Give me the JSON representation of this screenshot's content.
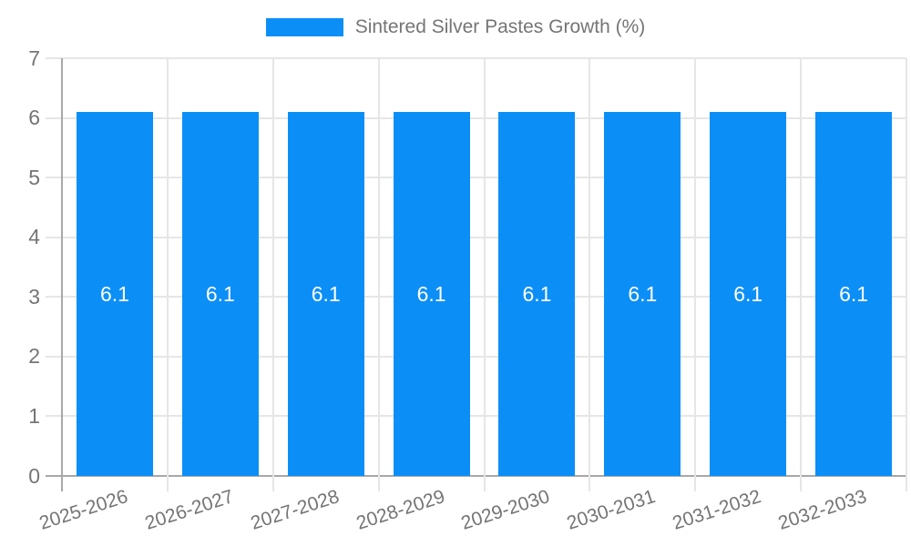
{
  "chart_data": {
    "type": "bar",
    "title": "",
    "xlabel": "",
    "ylabel": "",
    "legend": {
      "label": "Sintered Silver Pastes Growth (%)",
      "position": "top"
    },
    "categories": [
      "2025-2026",
      "2026-2027",
      "2027-2028",
      "2028-2029",
      "2029-2030",
      "2030-2031",
      "2031-2032",
      "2032-2033"
    ],
    "series": [
      {
        "name": "Sintered Silver Pastes Growth (%)",
        "values": [
          6.1,
          6.1,
          6.1,
          6.1,
          6.1,
          6.1,
          6.1,
          6.1
        ],
        "data_labels": [
          "6.1",
          "6.1",
          "6.1",
          "6.1",
          "6.1",
          "6.1",
          "6.1",
          "6.1"
        ]
      }
    ],
    "ylim": [
      0,
      7
    ],
    "yticks": [
      0,
      1,
      2,
      3,
      4,
      5,
      6,
      7
    ],
    "grid": true,
    "colors": {
      "bar": "#0b8ff7",
      "axis_text": "#757575",
      "gridline": "#e6e6e6",
      "axis_line": "#a8a8a8",
      "bar_label_text": "#ffffff",
      "background": "#ffffff"
    }
  }
}
